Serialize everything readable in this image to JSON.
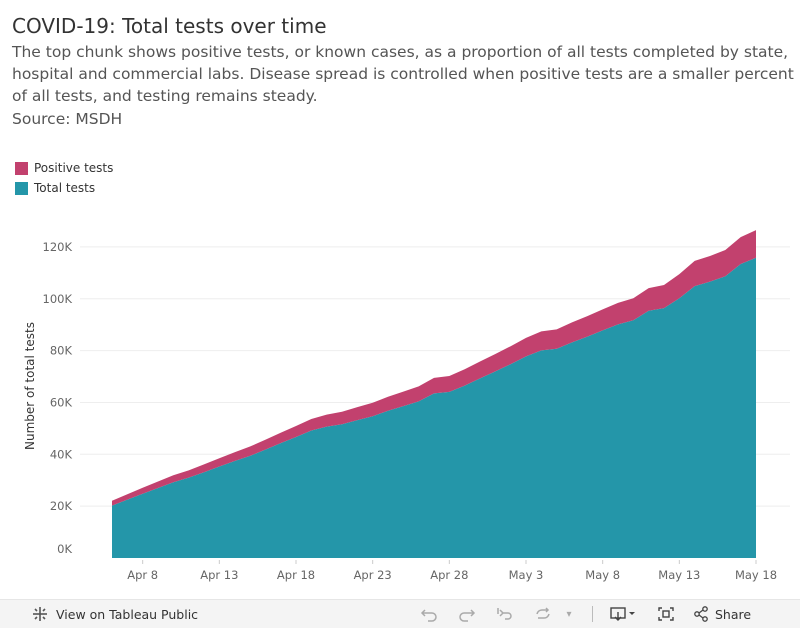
{
  "header": {
    "title": "COVID-19: Total tests over time",
    "subtitle": "The top chunk shows positive tests, or known cases, as a proportion of all tests completed by state, hospital and commercial labs. Disease spread is controlled when positive tests are a smaller percent of all tests, and testing remains steady.",
    "source": "Source: MSDH"
  },
  "legend": [
    {
      "label": "Positive tests",
      "color": "#c2416e"
    },
    {
      "label": "Total tests",
      "color": "#2496a9"
    }
  ],
  "chart_data": {
    "type": "area",
    "title": "COVID-19: Total tests over time",
    "xlabel": "",
    "ylabel": "Number of total tests",
    "ylim": [
      0,
      130000
    ],
    "y_ticks": [
      0,
      20000,
      40000,
      60000,
      80000,
      100000,
      120000
    ],
    "y_tick_labels": [
      "0K",
      "20K",
      "40K",
      "60K",
      "80K",
      "100K",
      "120K"
    ],
    "x_tick_labels": [
      "Apr 8",
      "Apr 13",
      "Apr 18",
      "Apr 23",
      "Apr 28",
      "May 3",
      "May 8",
      "May 13",
      "May 18"
    ],
    "x_tick_day_index": [
      2,
      7,
      12,
      17,
      22,
      27,
      32,
      37,
      42
    ],
    "stacked": true,
    "x": [
      "Apr 6",
      "Apr 7",
      "Apr 8",
      "Apr 9",
      "Apr 10",
      "Apr 11",
      "Apr 12",
      "Apr 13",
      "Apr 14",
      "Apr 15",
      "Apr 16",
      "Apr 17",
      "Apr 18",
      "Apr 19",
      "Apr 20",
      "Apr 21",
      "Apr 22",
      "Apr 23",
      "Apr 24",
      "Apr 25",
      "Apr 26",
      "Apr 27",
      "Apr 28",
      "Apr 29",
      "Apr 30",
      "May 1",
      "May 2",
      "May 3",
      "May 4",
      "May 5",
      "May 6",
      "May 7",
      "May 8",
      "May 9",
      "May 10",
      "May 11",
      "May 12",
      "May 13",
      "May 14",
      "May 15",
      "May 16",
      "May 17",
      "May 18"
    ],
    "series": [
      {
        "name": "Total tests",
        "color": "#2496a9",
        "values": [
          20200,
          22500,
          24800,
          27000,
          29200,
          31000,
          33100,
          35300,
          37400,
          39400,
          41800,
          44300,
          46700,
          49200,
          50700,
          51600,
          53200,
          54700,
          56800,
          58600,
          60400,
          63500,
          64100,
          66500,
          69300,
          72000,
          74800,
          77800,
          80100,
          80700,
          83200,
          85400,
          87800,
          90100,
          91700,
          95400,
          96400,
          100200,
          104900,
          106600,
          108700,
          113400,
          115800
        ]
      },
      {
        "name": "Positive tests",
        "color": "#c2416e",
        "values": [
          1900,
          2100,
          2300,
          2500,
          2700,
          2800,
          3000,
          3200,
          3400,
          3600,
          3800,
          4000,
          4200,
          4400,
          4600,
          4800,
          5000,
          5200,
          5400,
          5600,
          5800,
          6000,
          6100,
          6300,
          6500,
          6700,
          6900,
          7100,
          7300,
          7500,
          7700,
          7900,
          8100,
          8300,
          8500,
          8700,
          8900,
          9300,
          9700,
          9900,
          10100,
          10400,
          10700
        ]
      }
    ]
  },
  "footer": {
    "view_label": "View on Tableau Public",
    "share_label": "Share"
  }
}
